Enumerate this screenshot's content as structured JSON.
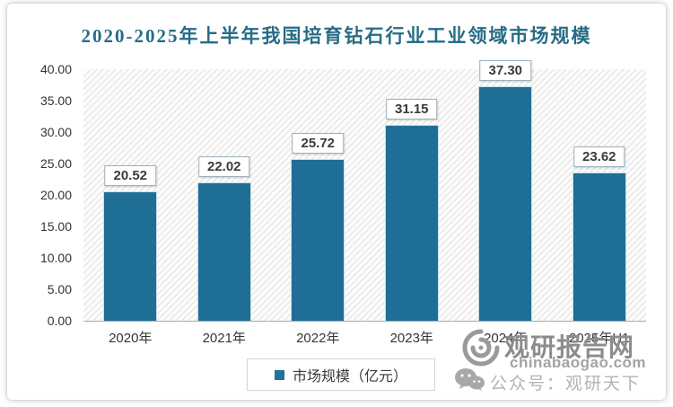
{
  "chart_data": {
    "type": "bar",
    "title": "2020-2025年上半年我国培育钻石行业工业领域市场规模",
    "categories": [
      "2020年",
      "2021年",
      "2022年",
      "2023年",
      "2024年",
      "2025年H1"
    ],
    "values": [
      20.52,
      22.02,
      25.72,
      31.15,
      37.3,
      23.62
    ],
    "value_labels": [
      "20.52",
      "22.02",
      "25.72",
      "31.15",
      "37.30",
      "23.62"
    ],
    "series_name": "市场规模（亿元）",
    "xlabel": "",
    "ylabel": "",
    "ylim": [
      0,
      40
    ],
    "yticks": [
      "40.00",
      "35.00",
      "30.00",
      "25.00",
      "20.00",
      "15.00",
      "10.00",
      "5.00",
      "0.00"
    ],
    "grid": false,
    "legend_position": "bottom",
    "bar_color": "#1f6e96",
    "title_color": "#266c85"
  },
  "legend": {
    "label": "市场规模（亿元）",
    "marker_color": "#23729b"
  },
  "watermark": {
    "site_name": "观研报告网",
    "site_url": "chinabaogao.com",
    "wechat_line": "公众号：观研天下"
  }
}
